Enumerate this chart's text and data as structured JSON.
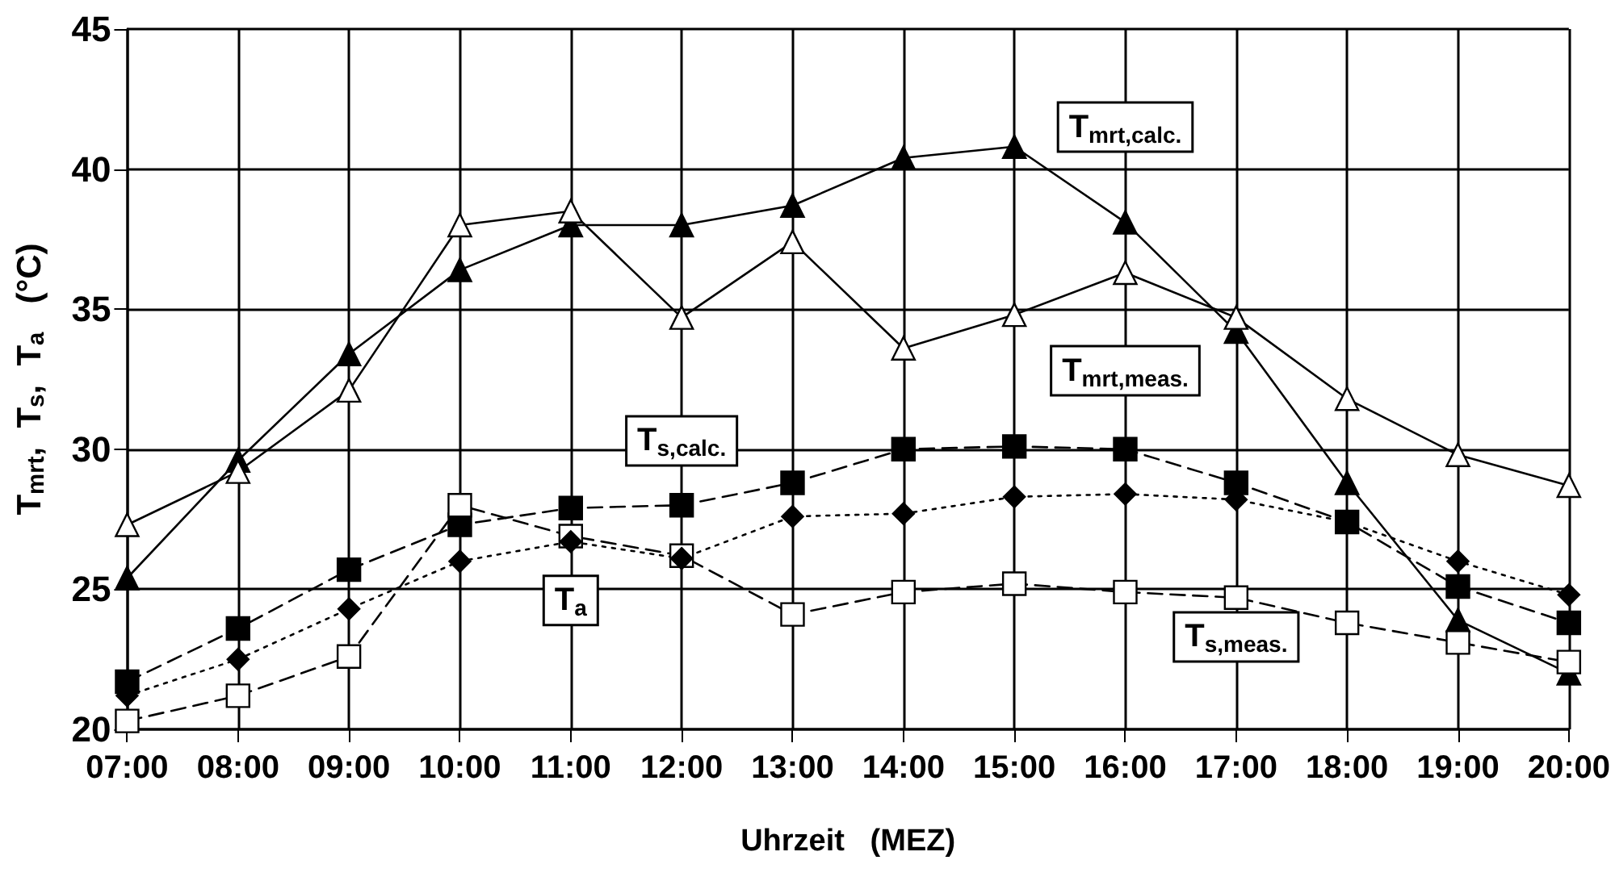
{
  "chart_data": {
    "type": "line",
    "xlabel": "Uhrzeit   (MEZ)",
    "ylabel": "T$_{mrt}$,  T$_{s}$,  T$_{a}$   (°C)",
    "categories": [
      "07:00",
      "08:00",
      "09:00",
      "10:00",
      "11:00",
      "12:00",
      "13:00",
      "14:00",
      "15:00",
      "16:00",
      "17:00",
      "18:00",
      "19:00",
      "20:00"
    ],
    "ylim": [
      20,
      45
    ],
    "yticks": [
      20,
      25,
      30,
      35,
      40,
      45
    ],
    "grid": true,
    "series": [
      {
        "name": "T$_{mrt,calc.}$",
        "color": "#000000",
        "marker": "triangle",
        "line_style": "solid",
        "values": [
          25.4,
          29.6,
          33.4,
          36.4,
          38.0,
          38.0,
          38.7,
          40.4,
          40.8,
          38.1,
          34.2,
          28.8,
          23.9,
          22.0
        ]
      },
      {
        "name": "T$_{mrt,meas.}$",
        "color": "#ffffff",
        "marker": "triangle",
        "line_style": "solid",
        "values": [
          27.3,
          29.2,
          32.1,
          38.0,
          38.5,
          34.7,
          37.4,
          33.6,
          34.8,
          36.3,
          34.7,
          31.8,
          29.8,
          28.7
        ]
      },
      {
        "name": "T$_{s,calc.}$",
        "color": "#000000",
        "marker": "square",
        "line_style": "dashed",
        "values": [
          21.7,
          23.6,
          25.7,
          27.3,
          27.9,
          28.0,
          28.8,
          30.0,
          30.1,
          30.0,
          28.8,
          27.4,
          25.1,
          23.8
        ]
      },
      {
        "name": "T$_{s,meas.}$",
        "color": "#ffffff",
        "marker": "square",
        "line_style": "dashed",
        "values": [
          20.3,
          21.2,
          22.6,
          28.0,
          26.9,
          26.2,
          24.1,
          24.9,
          25.2,
          24.9,
          24.7,
          23.8,
          23.1,
          22.4
        ]
      },
      {
        "name": "T$_{a}$",
        "color": "#000000",
        "marker": "diamond",
        "line_style": "dotted",
        "values": [
          21.2,
          22.5,
          24.3,
          26.0,
          26.7,
          26.1,
          27.6,
          27.7,
          28.3,
          28.4,
          28.2,
          27.4,
          26.0,
          24.8
        ]
      }
    ]
  }
}
